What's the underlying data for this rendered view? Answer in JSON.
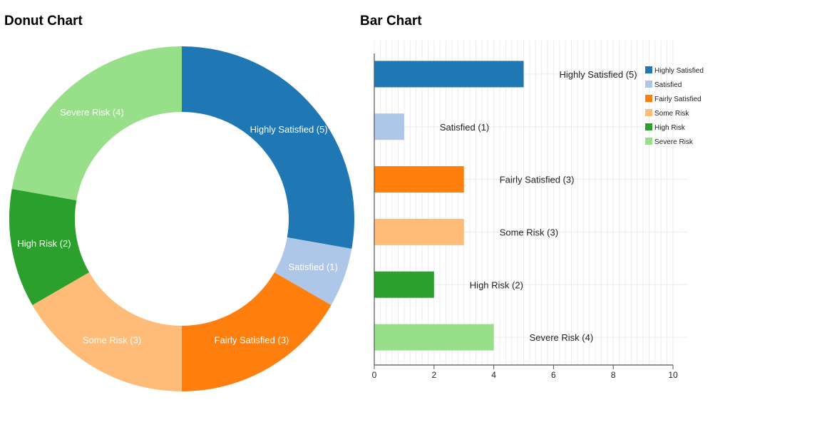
{
  "page": {
    "donut_heading": "Donut Chart",
    "bar_heading": "Bar Chart"
  },
  "chart_data": [
    {
      "type": "pie",
      "variant": "donut",
      "title": "Donut Chart",
      "categories": [
        "Highly Satisfied",
        "Satisfied",
        "Fairly Satisfied",
        "Some Risk",
        "High Risk",
        "Severe Risk"
      ],
      "values": [
        5,
        1,
        3,
        3,
        2,
        4
      ],
      "labels": [
        "Highly Satisfied (5)",
        "Satisfied (1)",
        "Fairly Satisfied (3)",
        "Some Risk (3)",
        "High Risk (2)",
        "Severe Risk (4)"
      ],
      "colors": [
        "#1f77b4",
        "#aec7e8",
        "#ff7f0e",
        "#ffbb78",
        "#2ca02c",
        "#98df8a"
      ],
      "label_color": "#ffffff"
    },
    {
      "type": "bar",
      "orientation": "horizontal",
      "title": "Bar Chart",
      "categories": [
        "Highly Satisfied",
        "Satisfied",
        "Fairly Satisfied",
        "Some Risk",
        "High Risk",
        "Severe Risk"
      ],
      "values": [
        5,
        1,
        3,
        3,
        2,
        4
      ],
      "data_labels": [
        "Highly Satisfied (5)",
        "Satisfied (1)",
        "Fairly Satisfied (3)",
        "Some Risk (3)",
        "High Risk (2)",
        "Severe Risk (4)"
      ],
      "legend_labels": [
        "Highly Satisfied",
        "Satisfied",
        "Fairly Satisfied",
        "Some Risk",
        "High Risk",
        "Severe Risk"
      ],
      "colors": [
        "#1f77b4",
        "#aec7e8",
        "#ff7f0e",
        "#ffbb78",
        "#2ca02c",
        "#98df8a"
      ],
      "xlim": [
        0,
        10
      ],
      "xticks": [
        0,
        2,
        4,
        6,
        8,
        10
      ],
      "xticks_text": [
        "0",
        "2",
        "4",
        "6",
        "8",
        "10"
      ],
      "xlabel": "",
      "ylabel": "",
      "grid": true,
      "legend": "top-right"
    }
  ]
}
